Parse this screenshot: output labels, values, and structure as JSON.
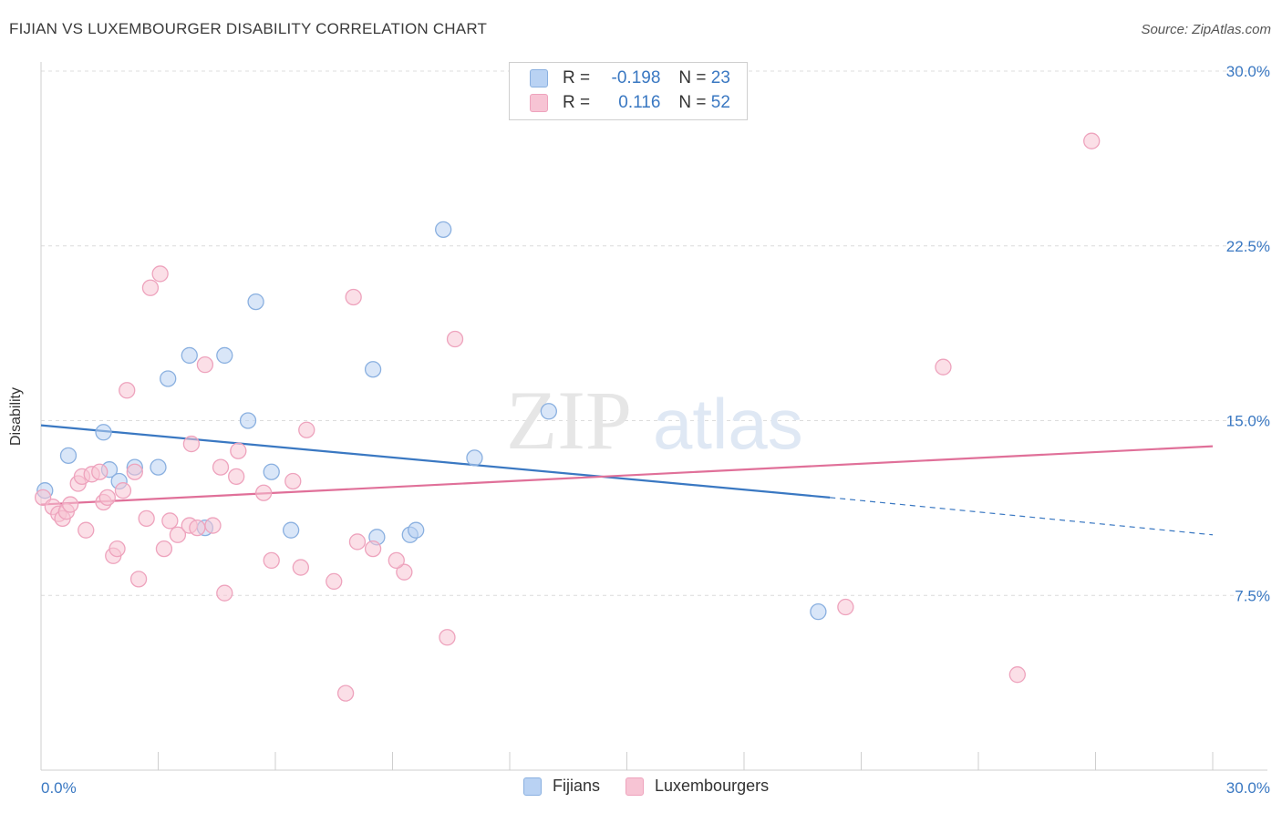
{
  "chart_data": {
    "type": "scatter",
    "title": "FIJIAN VS LUXEMBOURGER DISABILITY CORRELATION CHART",
    "source": "Source: ZipAtlas.com",
    "ylabel": "Disability",
    "xlim": [
      0,
      30
    ],
    "ylim": [
      0,
      30
    ],
    "x_tick_labels": [
      "0.0%",
      "30.0%"
    ],
    "y_ticks": [
      7.5,
      15.0,
      22.5,
      30.0
    ],
    "y_tick_labels": [
      "7.5%",
      "15.0%",
      "22.5%",
      "30.0%"
    ],
    "watermark": {
      "part1": "ZIP",
      "part2": "atlas"
    },
    "series": [
      {
        "name": "Fijians",
        "color": "#3a78c2",
        "fill": "#b9d2f3",
        "stroke": "#8ab0e0",
        "R": "-0.198",
        "N": "23",
        "trend": {
          "x0": 0,
          "y0": 14.8,
          "x1": 20.2,
          "y1": 11.7,
          "dash_to_x": 30,
          "dash_to_y": 10.1
        },
        "points": [
          [
            0.1,
            12.0
          ],
          [
            0.7,
            13.5
          ],
          [
            1.6,
            14.5
          ],
          [
            1.75,
            12.9
          ],
          [
            2.0,
            12.4
          ],
          [
            2.4,
            13.0
          ],
          [
            3.0,
            13.0
          ],
          [
            3.25,
            16.8
          ],
          [
            3.8,
            17.8
          ],
          [
            4.2,
            10.4
          ],
          [
            4.7,
            17.8
          ],
          [
            5.3,
            15.0
          ],
          [
            5.5,
            20.1
          ],
          [
            5.9,
            12.8
          ],
          [
            6.4,
            10.3
          ],
          [
            8.5,
            17.2
          ],
          [
            8.6,
            10.0
          ],
          [
            9.45,
            10.1
          ],
          [
            9.6,
            10.3
          ],
          [
            10.3,
            23.2
          ],
          [
            11.1,
            13.4
          ],
          [
            13.0,
            15.4
          ],
          [
            19.9,
            6.8
          ]
        ]
      },
      {
        "name": "Luxembourgers",
        "color": "#e07099",
        "fill": "#f7c4d4",
        "stroke": "#eea3bd",
        "R": "0.116",
        "N": "52",
        "trend": {
          "x0": 0,
          "y0": 11.4,
          "x1": 30,
          "y1": 13.9
        },
        "points": [
          [
            0.05,
            11.7
          ],
          [
            0.3,
            11.3
          ],
          [
            0.45,
            11.0
          ],
          [
            0.55,
            10.8
          ],
          [
            0.65,
            11.1
          ],
          [
            0.75,
            11.4
          ],
          [
            0.95,
            12.3
          ],
          [
            1.05,
            12.6
          ],
          [
            1.15,
            10.3
          ],
          [
            1.3,
            12.7
          ],
          [
            1.5,
            12.8
          ],
          [
            1.6,
            11.5
          ],
          [
            1.7,
            11.7
          ],
          [
            1.85,
            9.2
          ],
          [
            1.95,
            9.5
          ],
          [
            2.1,
            12.0
          ],
          [
            2.2,
            16.3
          ],
          [
            2.4,
            12.8
          ],
          [
            2.5,
            8.2
          ],
          [
            2.7,
            10.8
          ],
          [
            2.8,
            20.7
          ],
          [
            3.05,
            21.3
          ],
          [
            3.15,
            9.5
          ],
          [
            3.3,
            10.7
          ],
          [
            3.5,
            10.1
          ],
          [
            3.8,
            10.5
          ],
          [
            3.85,
            14.0
          ],
          [
            4.0,
            10.4
          ],
          [
            4.2,
            17.4
          ],
          [
            4.4,
            10.5
          ],
          [
            4.6,
            13.0
          ],
          [
            4.7,
            7.6
          ],
          [
            5.0,
            12.6
          ],
          [
            5.05,
            13.7
          ],
          [
            5.7,
            11.9
          ],
          [
            5.9,
            9.0
          ],
          [
            6.45,
            12.4
          ],
          [
            6.65,
            8.7
          ],
          [
            6.8,
            14.6
          ],
          [
            7.5,
            8.1
          ],
          [
            7.8,
            3.3
          ],
          [
            8.0,
            20.3
          ],
          [
            8.5,
            9.5
          ],
          [
            9.3,
            8.5
          ],
          [
            9.1,
            9.0
          ],
          [
            10.6,
            18.5
          ],
          [
            10.4,
            5.7
          ],
          [
            20.6,
            7.0
          ],
          [
            23.1,
            17.3
          ],
          [
            25.0,
            4.1
          ],
          [
            26.9,
            27.0
          ],
          [
            8.1,
            9.8
          ]
        ]
      }
    ]
  },
  "legend_top": {
    "r_label": "R =",
    "n_label": "N ="
  }
}
